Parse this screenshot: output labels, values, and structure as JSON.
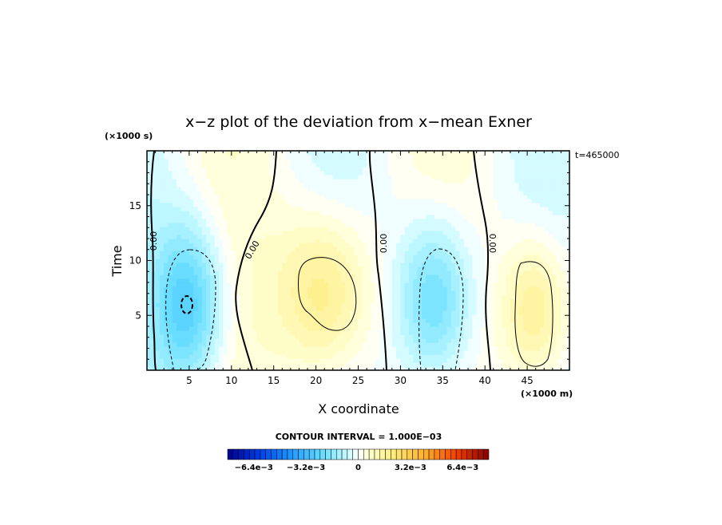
{
  "chart_data": {
    "type": "heatmap",
    "title": "x−z plot of the deviation from x−mean Exner",
    "xlabel": "X coordinate",
    "ylabel": "Time",
    "x_unit_label": "(×1000 m)",
    "y_unit_label": "(×1000 s)",
    "time_stamp": "t=465000",
    "xlim": [
      0,
      50
    ],
    "ylim": [
      0,
      20
    ],
    "xticks": [
      5,
      10,
      15,
      20,
      25,
      30,
      35,
      40,
      45
    ],
    "yticks": [
      5,
      10,
      15
    ],
    "contour_interval_text": "CONTOUR INTERVAL = 1.000E−03",
    "contour_label": "0.00",
    "colorbar": {
      "range": [
        -0.008,
        0.008
      ],
      "tick_labels": [
        "−6.4e−3",
        "−3.2e−3",
        "0",
        "3.2e−3",
        "6.4e−3"
      ],
      "tick_values": [
        -0.0064,
        -0.0032,
        0,
        0.0032,
        0.0064
      ]
    },
    "anomalies": [
      {
        "sign": "negative",
        "x": 5,
        "y": 6,
        "peak": -0.0028,
        "sx": 3.0,
        "sy": 5.5
      },
      {
        "sign": "negative",
        "x": 34,
        "y": 6.5,
        "peak": -0.0026,
        "sx": 3.2,
        "sy": 5.5
      },
      {
        "sign": "positive",
        "x": 21,
        "y": 7,
        "peak": 0.0024,
        "sx": 4.0,
        "sy": 5.5
      },
      {
        "sign": "positive",
        "x": 46,
        "y": 5.5,
        "peak": 0.0022,
        "sx": 3.0,
        "sy": 5.0
      }
    ]
  }
}
